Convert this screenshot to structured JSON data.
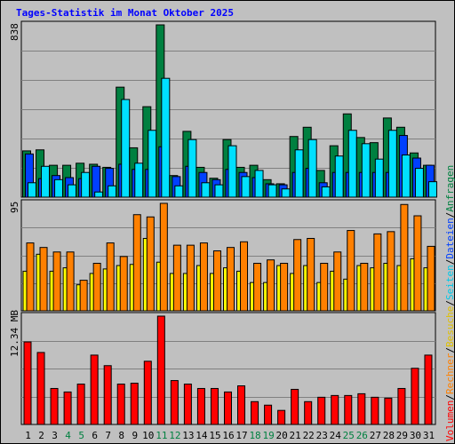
{
  "title": "Tages-Statistik im Monat Oktober 2025",
  "legend_right": {
    "anfragen": "Anfragen",
    "dateien": "Dateien",
    "seiten": "Seiten",
    "besuche": "Besuche",
    "rechner": "Rechner",
    "volumen": "Volumen",
    "sep": "/"
  },
  "colors": {
    "anfragen": "#008040",
    "dateien": "#0040ff",
    "seiten": "#00e0ff",
    "besuche": "#ffff00",
    "rechner": "#ff8000",
    "volumen": "#ff0000",
    "title": "#0000ff",
    "weekend_label": "#008040"
  },
  "chart_data": [
    {
      "type": "bar",
      "panel": "hits",
      "ymax_label": "838",
      "ylim": [
        0,
        838
      ],
      "categories": [
        "1",
        "2",
        "3",
        "4",
        "5",
        "6",
        "7",
        "8",
        "9",
        "10",
        "11",
        "12",
        "13",
        "14",
        "15",
        "16",
        "17",
        "18",
        "19",
        "20",
        "21",
        "22",
        "23",
        "24",
        "25",
        "26",
        "27",
        "28",
        "29",
        "30",
        "31"
      ],
      "weekend_days": [
        "4",
        "5",
        "11",
        "12",
        "18",
        "19",
        "25",
        "26"
      ],
      "series": [
        {
          "name": "Anfragen",
          "values": [
            225,
            230,
            155,
            155,
            165,
            160,
            145,
            535,
            240,
            440,
            838,
            105,
            320,
            145,
            92,
            280,
            145,
            155,
            85,
            65,
            295,
            340,
            130,
            250,
            405,
            290,
            265,
            385,
            340,
            215,
            155
          ]
        },
        {
          "name": "Dateien",
          "values": [
            210,
            90,
            105,
            95,
            90,
            150,
            140,
            160,
            135,
            135,
            245,
            100,
            150,
            120,
            85,
            135,
            120,
            95,
            65,
            60,
            120,
            140,
            70,
            120,
            120,
            120,
            120,
            120,
            300,
            190,
            155
          ]
        },
        {
          "name": "Seiten",
          "values": [
            70,
            150,
            85,
            60,
            120,
            25,
            55,
            475,
            165,
            325,
            578,
            55,
            280,
            70,
            60,
            250,
            100,
            130,
            60,
            40,
            230,
            280,
            50,
            200,
            325,
            260,
            185,
            325,
            205,
            140,
            75
          ]
        }
      ]
    },
    {
      "type": "bar",
      "panel": "visits",
      "ymax_label": "95",
      "ylim": [
        0,
        95
      ],
      "categories": [
        "1",
        "2",
        "3",
        "4",
        "5",
        "6",
        "7",
        "8",
        "9",
        "10",
        "11",
        "12",
        "13",
        "14",
        "15",
        "16",
        "17",
        "18",
        "19",
        "20",
        "21",
        "22",
        "23",
        "24",
        "25",
        "26",
        "27",
        "28",
        "29",
        "30",
        "31"
      ],
      "series": [
        {
          "name": "Besuche",
          "values": [
            35,
            50,
            35,
            38,
            23,
            33,
            37,
            40,
            41,
            64,
            43,
            33,
            33,
            40,
            33,
            38,
            35,
            25,
            25,
            40,
            33,
            40,
            25,
            35,
            28,
            40,
            38,
            42,
            40,
            46,
            38
          ]
        },
        {
          "name": "Rechner",
          "values": [
            60,
            56,
            52,
            52,
            27,
            42,
            60,
            48,
            85,
            83,
            95,
            58,
            58,
            60,
            53,
            56,
            61,
            42,
            45,
            42,
            63,
            64,
            42,
            52,
            71,
            42,
            68,
            70,
            94,
            84,
            57
          ]
        }
      ]
    },
    {
      "type": "bar",
      "panel": "volume",
      "ymax_label": "12.34 MB",
      "unit": "MB",
      "ylim": [
        0,
        12.34
      ],
      "categories": [
        "1",
        "2",
        "3",
        "4",
        "5",
        "6",
        "7",
        "8",
        "9",
        "10",
        "11",
        "12",
        "13",
        "14",
        "15",
        "16",
        "17",
        "18",
        "19",
        "20",
        "21",
        "22",
        "23",
        "24",
        "25",
        "26",
        "27",
        "28",
        "29",
        "30",
        "31"
      ],
      "series": [
        {
          "name": "Volumen",
          "values": [
            9.4,
            8.2,
            4.1,
            3.7,
            4.6,
            7.9,
            6.7,
            4.6,
            4.7,
            7.2,
            12.34,
            5.0,
            4.6,
            4.1,
            4.1,
            3.7,
            4.4,
            2.6,
            2.2,
            1.6,
            4.0,
            2.6,
            3.1,
            3.3,
            3.3,
            3.5,
            3.1,
            3.0,
            4.1,
            6.4,
            7.9
          ]
        }
      ]
    }
  ]
}
